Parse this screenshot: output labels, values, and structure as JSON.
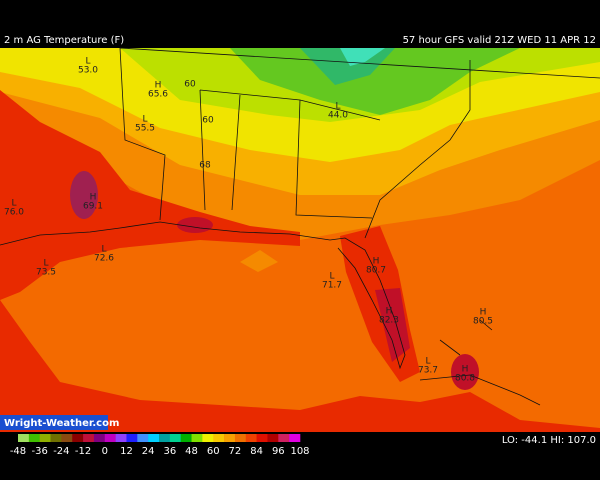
{
  "header": {
    "title": "2 m AG Temperature (F)",
    "valid": "57 hour GFS valid 21Z WED 11 APR 12"
  },
  "labels": [
    {
      "marker": "L",
      "text": "53.0"
    },
    {
      "marker": "H",
      "text": "65.6"
    },
    {
      "text": "60"
    },
    {
      "marker": "L",
      "text": "55.5"
    },
    {
      "text": "60"
    },
    {
      "text": "68"
    },
    {
      "marker": "L",
      "text": "44.0"
    },
    {
      "marker": "L",
      "text": "76.0"
    },
    {
      "marker": "H",
      "text": "69.1"
    },
    {
      "marker": "L",
      "text": "73.5"
    },
    {
      "marker": "L",
      "text": "72.6"
    },
    {
      "marker": "H",
      "text": "80.7"
    },
    {
      "marker": "L",
      "text": "71.7"
    },
    {
      "marker": "H",
      "text": "82.3"
    },
    {
      "marker": "L",
      "text": "73.7"
    },
    {
      "marker": "H",
      "text": "80.5"
    },
    {
      "marker": "H",
      "text": "80.8"
    }
  ],
  "colorbar": {
    "ticks": [
      -48,
      -36,
      -24,
      -12,
      0,
      12,
      24,
      36,
      48,
      60,
      72,
      84,
      96,
      108
    ]
  },
  "footer": {
    "brand": "Wright-Weather.com",
    "extremes": "LO: -44.1  HI: 107.0"
  }
}
